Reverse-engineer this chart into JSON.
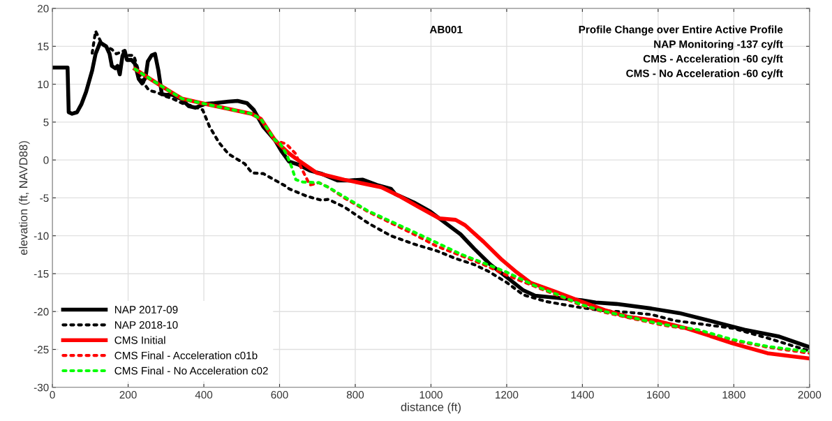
{
  "chart_data": {
    "type": "line",
    "xlabel": "distance (ft)",
    "ylabel": "elevation (ft, NAVD88)",
    "annotations": [
      "AB001",
      "Profile Change over Entire Active Profile\nNAP Monitoring -137 cy/ft\nCMS - Acceleration -60 cy/ft\nCMS - No Acceleration -60 cy/ft"
    ],
    "xlim": [
      0,
      2000
    ],
    "xticks": [
      0,
      200,
      400,
      600,
      800,
      1000,
      1200,
      1400,
      1600,
      1800,
      2000
    ],
    "ylim": [
      -30,
      20
    ],
    "yticks": [
      -30,
      -25,
      -20,
      -15,
      -10,
      -5,
      0,
      5,
      10,
      15,
      20
    ],
    "grid": true,
    "legend": "bottom left",
    "marker": "none",
    "series": [
      {
        "name": "NAP 2017-09",
        "color": "#000000",
        "line_style": "solid",
        "x": [
          0,
          40,
          43,
          52,
          65,
          77,
          89,
          105,
          114,
          126,
          142,
          151,
          157,
          166,
          172,
          178,
          185,
          191,
          197,
          209,
          218,
          228,
          237,
          246,
          252,
          262,
          271,
          280,
          289,
          298,
          317,
          342,
          360,
          378,
          403,
          428,
          465,
          489,
          514,
          532,
          557,
          588,
          606,
          625,
          649,
          680,
          710,
          753,
          784,
          820,
          857,
          894,
          906,
          955,
          998,
          1035,
          1078,
          1114,
          1157,
          1201,
          1244,
          1275,
          1336,
          1398,
          1435,
          1490,
          1582,
          1656,
          1767,
          1828,
          1920,
          2000
        ],
        "values": [
          12.2,
          12.2,
          6.3,
          6.1,
          6.3,
          7.4,
          9,
          11.8,
          14,
          15.5,
          15,
          14,
          12.4,
          12.1,
          12.4,
          11.3,
          13.7,
          14.4,
          13.2,
          13.2,
          12.7,
          10.7,
          10.1,
          10.9,
          13,
          13.8,
          14,
          11.8,
          8.7,
          8.6,
          8.6,
          8,
          7.1,
          6.9,
          7.4,
          7.5,
          7.7,
          7.8,
          7.5,
          6.6,
          4.4,
          2.6,
          1.1,
          -0.2,
          -0.6,
          -1.4,
          -1.8,
          -2.7,
          -2.7,
          -2.6,
          -3.3,
          -3.8,
          -4.5,
          -5.6,
          -6.8,
          -8.2,
          -9.8,
          -11.7,
          -13.8,
          -15.5,
          -17.2,
          -17.9,
          -18.2,
          -18.5,
          -18.8,
          -19,
          -19.6,
          -20.2,
          -21.6,
          -22.4,
          -23.3,
          -24.7
        ]
      },
      {
        "name": "NAP 2018-10",
        "color": "#000000",
        "line_style": "dotted",
        "x": [
          105,
          114,
          123,
          132,
          157,
          169,
          188,
          200,
          215,
          231,
          243,
          255,
          277,
          298,
          317,
          342,
          372,
          397,
          415,
          440,
          465,
          508,
          527,
          557,
          618,
          625,
          673,
          710,
          729,
          771,
          833,
          894,
          955,
          1016,
          1065,
          1114,
          1152,
          1201,
          1244,
          1306,
          1398,
          1459,
          1521,
          1582,
          1644,
          1705,
          1797,
          1889,
          2000
        ],
        "values": [
          14.1,
          17,
          16.1,
          15.2,
          14.6,
          14,
          14.4,
          13.8,
          13.8,
          11.2,
          10,
          9.2,
          8.9,
          8.4,
          8.1,
          7.5,
          7.1,
          6.6,
          4.4,
          2.3,
          0.8,
          -0.5,
          -1.7,
          -1.8,
          -3.5,
          -3.8,
          -4.8,
          -5.3,
          -5.2,
          -6.2,
          -8.3,
          -10,
          -11.1,
          -12,
          -13,
          -13.8,
          -14.7,
          -16.2,
          -17.8,
          -18.7,
          -19.5,
          -19.9,
          -20.1,
          -20.4,
          -21.2,
          -21.6,
          -22.2,
          -23.5,
          -25.2
        ]
      },
      {
        "name": "CMS Initial",
        "color": "#ff0000",
        "line_style": "solid",
        "x": [
          218,
          280,
          342,
          403,
          526,
          551,
          588,
          624,
          649,
          698,
          771,
          869,
          918,
          967,
          1022,
          1065,
          1090,
          1139,
          1188,
          1226,
          1263,
          1324,
          1398,
          1459,
          1521,
          1594,
          1674,
          1736,
          1797,
          1889,
          2000
        ],
        "values": [
          12,
          10,
          8.1,
          7.4,
          6.1,
          5.4,
          2.6,
          0.9,
          0,
          -1.7,
          -2.6,
          -3.6,
          -4.8,
          -6.2,
          -7.7,
          -7.9,
          -8.6,
          -10.8,
          -13.2,
          -14.8,
          -16.2,
          -17.3,
          -18.7,
          -19.8,
          -20.7,
          -21.2,
          -22.2,
          -23.2,
          -24.2,
          -25.5,
          -26.2
        ]
      },
      {
        "name": "CMS Final - Acceleration c01b",
        "color": "#ff0000",
        "line_style": "dotted",
        "x": [
          218,
          280,
          342,
          403,
          526,
          551,
          588,
          618,
          643,
          655,
          673,
          680,
          704,
          729,
          771,
          833,
          894,
          955,
          1016,
          1078,
          1139,
          1200,
          1275,
          1336,
          1398,
          1459,
          1521,
          1613,
          1705,
          1797,
          1889,
          2000
        ],
        "values": [
          12,
          10,
          8.1,
          7.4,
          6.1,
          5.4,
          2.6,
          2.1,
          0.8,
          -0.8,
          -2.6,
          -3.3,
          -3,
          -3.6,
          -5,
          -6.8,
          -8.3,
          -9.8,
          -11.4,
          -12.6,
          -13.8,
          -15.2,
          -16.7,
          -17.9,
          -19.2,
          -20.1,
          -20.8,
          -21.8,
          -22.5,
          -23.8,
          -24.7,
          -25.5
        ]
      },
      {
        "name": "CMS Final - No Acceleration c02",
        "color": "#00ff00",
        "line_style": "dotted",
        "x": [
          218,
          280,
          342,
          403,
          526,
          551,
          588,
          600,
          618,
          631,
          643,
          661,
          704,
          729,
          833,
          955,
          1078,
          1200,
          1275,
          1336,
          1398,
          1459,
          1521,
          1613,
          1705,
          1797,
          1889,
          2000
        ],
        "values": [
          12,
          10,
          8.1,
          7.4,
          6.1,
          5.4,
          2.6,
          2.3,
          0.8,
          -0.8,
          -2.6,
          -2.9,
          -3,
          -3.6,
          -6.7,
          -9.5,
          -12.4,
          -14.8,
          -16.6,
          -17.8,
          -19.1,
          -20,
          -20.7,
          -21.7,
          -22.4,
          -23.7,
          -24.6,
          -25.3
        ]
      }
    ]
  }
}
